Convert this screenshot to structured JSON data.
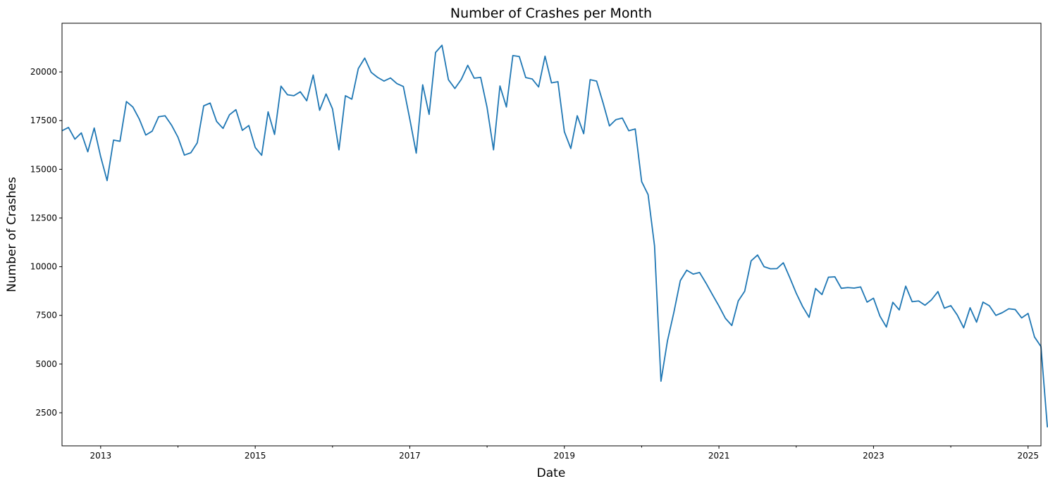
{
  "chart_data": {
    "type": "line",
    "title": "Number of Crashes per Month",
    "xlabel": "Date",
    "ylabel": "Number of Crashes",
    "xlim": [
      "2012-07",
      "2025-03"
    ],
    "ylim": [
      800,
      22500
    ],
    "x_ticks": [
      "2013",
      "2015",
      "2017",
      "2019",
      "2021",
      "2023",
      "2025"
    ],
    "y_ticks": [
      2500,
      5000,
      7500,
      10000,
      12500,
      15000,
      17500,
      20000
    ],
    "grid": false,
    "legend": "none",
    "series": [
      {
        "color": "#1f77b4",
        "start": "2012-07",
        "frequency": "monthly",
        "values": [
          16980,
          17150,
          16550,
          16870,
          15900,
          17120,
          15650,
          14420,
          16500,
          16440,
          18480,
          18200,
          17580,
          16760,
          16960,
          17700,
          17750,
          17270,
          16650,
          15730,
          15850,
          16360,
          18260,
          18400,
          17460,
          17100,
          17800,
          18060,
          17000,
          17250,
          16120,
          15720,
          17950,
          16790,
          19270,
          18830,
          18780,
          18980,
          18520,
          19840,
          18030,
          18870,
          18100,
          16000,
          18780,
          18600,
          20170,
          20710,
          19980,
          19720,
          19530,
          19690,
          19400,
          19250,
          17580,
          15830,
          19340,
          17820,
          21000,
          21370,
          19600,
          19150,
          19620,
          20340,
          19680,
          19720,
          18170,
          16000,
          19280,
          18200,
          20840,
          20790,
          19710,
          19640,
          19230,
          20810,
          19440,
          19500,
          16930,
          16070,
          17750,
          16830,
          19600,
          19530,
          18420,
          17230,
          17550,
          17630,
          16980,
          17070,
          14370,
          13700,
          11070,
          4120,
          6180,
          7650,
          9280,
          9820,
          9620,
          9700,
          9150,
          8560,
          7980,
          7350,
          6980,
          8240,
          8740,
          10300,
          10600,
          10000,
          9890,
          9900,
          10200,
          9440,
          8640,
          7950,
          7400,
          8880,
          8570,
          9460,
          9480,
          8890,
          8930,
          8900,
          8960,
          8180,
          8380,
          7460,
          6900,
          8170,
          7780,
          9000,
          8200,
          8240,
          8020,
          8300,
          8720,
          7870,
          8000,
          7520,
          6860,
          7890,
          7150,
          8180,
          7990,
          7500,
          7640,
          7840,
          7800,
          7370,
          7600,
          6390,
          5900,
          1750
        ]
      }
    ]
  }
}
